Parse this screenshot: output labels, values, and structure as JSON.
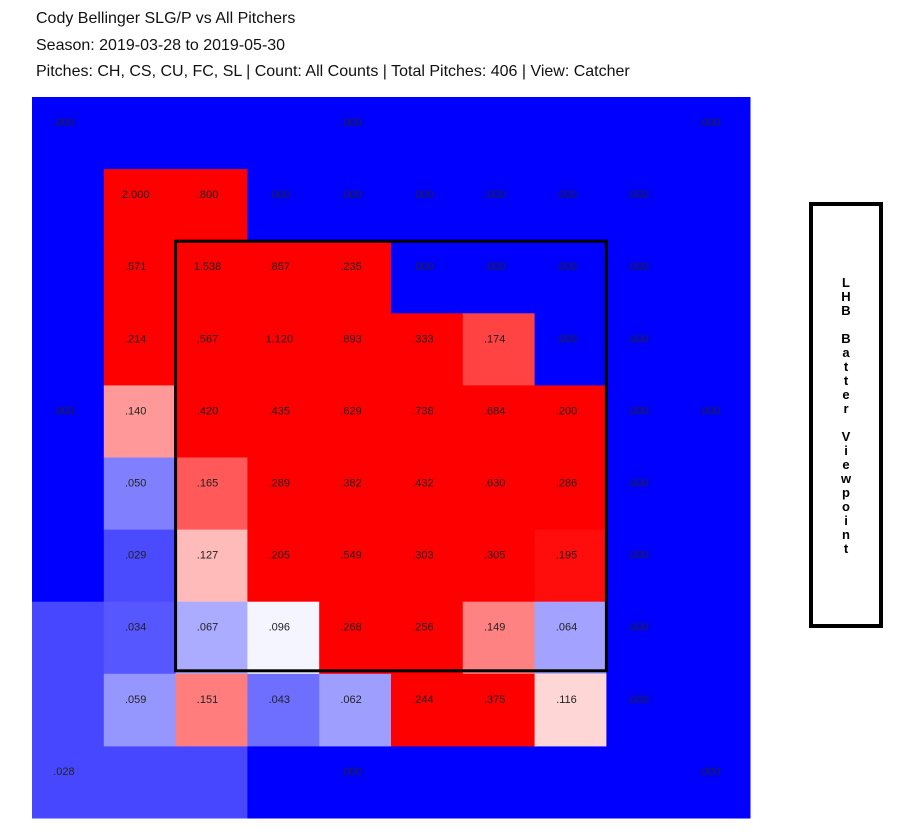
{
  "chart_data": {
    "type": "heatmap",
    "title": "Cody Bellinger SLG/P vs All Pitchers",
    "subtitle": "Season: 2019-03-28 to 2019-05-30",
    "caption": "Pitches: CH, CS, CU, FC, SL | Count: All Counts | Total Pitches: 406 | View: Catcher",
    "side_label": "LHB Batter Viewpoint",
    "color_scale": {
      "colors": [
        "#0000ff",
        "#ffffff",
        "#ff0000"
      ],
      "domain": [
        0,
        0.1,
        0.2
      ]
    },
    "cells": {
      "values": [
        [
          2.0,
          0.8,
          0,
          0,
          0,
          0,
          0,
          0
        ],
        [
          0.571,
          1.538,
          0.857,
          0.235,
          0,
          0,
          0,
          0
        ],
        [
          0.214,
          0.567,
          1.12,
          0.893,
          0.333,
          0.174,
          0,
          0
        ],
        [
          0.14,
          0.42,
          0.435,
          0.629,
          0.738,
          0.684,
          0.2,
          0
        ],
        [
          0.05,
          0.165,
          0.289,
          0.382,
          0.432,
          0.63,
          0.286,
          0
        ],
        [
          0.029,
          0.127,
          0.205,
          0.549,
          0.303,
          0.305,
          0.195,
          0
        ],
        [
          0.034,
          0.067,
          0.096,
          0.268,
          0.256,
          0.149,
          0.064,
          0
        ],
        [
          0.059,
          0.151,
          0.043,
          0.062,
          0.244,
          0.375,
          0.116,
          0
        ]
      ],
      "value_labels": [
        [
          "2.000",
          ".800",
          ".000",
          ".000",
          ".000",
          ".000",
          ".000",
          ".000"
        ],
        [
          ".571",
          "1.538",
          ".857",
          ".235",
          ".000",
          ".000",
          ".000",
          ".000"
        ],
        [
          ".214",
          ".567",
          "1.120",
          ".893",
          ".333",
          ".174",
          ".000",
          ".000"
        ],
        [
          ".140",
          ".420",
          ".435",
          ".629",
          ".738",
          ".684",
          ".200",
          ".000"
        ],
        [
          ".050",
          ".165",
          ".289",
          ".382",
          ".432",
          ".630",
          ".286",
          ".000"
        ],
        [
          ".029",
          ".127",
          ".205",
          ".549",
          ".303",
          ".305",
          ".195",
          ".000"
        ],
        [
          ".034",
          ".067",
          ".096",
          ".268",
          ".256",
          ".149",
          ".064",
          ".000"
        ],
        [
          ".059",
          ".151",
          ".043",
          ".062",
          ".244",
          ".375",
          ".116",
          ".000"
        ]
      ]
    },
    "outer_zones": {
      "values": [
        0,
        0,
        0,
        0,
        0,
        0.028,
        0,
        0
      ],
      "value_labels": [
        ".000",
        ".000",
        ".000",
        ".000",
        ".000",
        ".028",
        ".000",
        ".000"
      ]
    }
  }
}
